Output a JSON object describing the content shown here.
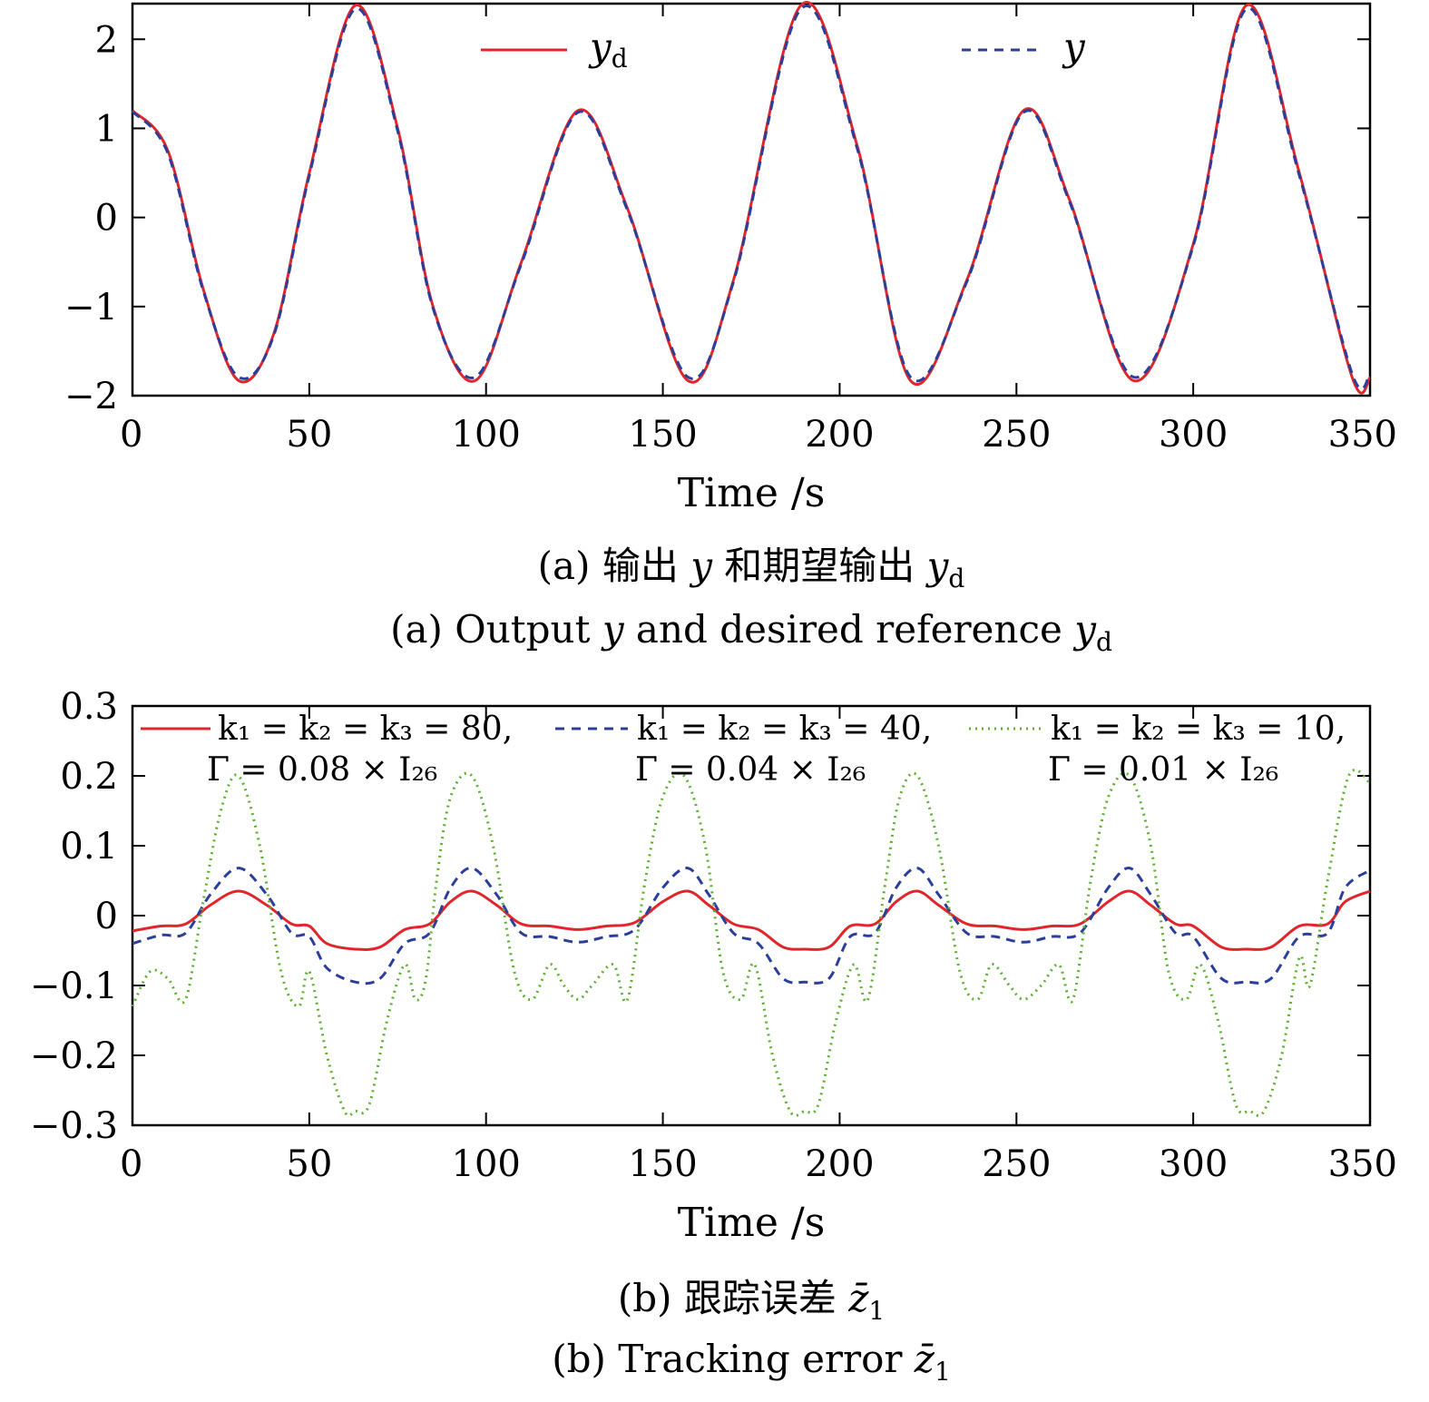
{
  "chart_data": [
    {
      "type": "line",
      "xlabel": "Time /s",
      "ylabel": "",
      "xlim": [
        0,
        350
      ],
      "ylim": [
        -2,
        2.4
      ],
      "x_ticks": [
        "0",
        "50",
        "100",
        "150",
        "200",
        "250",
        "300",
        "350"
      ],
      "y_ticks": [
        "−2",
        "−1",
        "0",
        "1",
        "2"
      ],
      "caption_cn": {
        "prefix": "(a) 输出",
        "sym1": "y",
        "mid": "和期望输出",
        "sym2": "y",
        "sub2": "d"
      },
      "caption_en": {
        "prefix": "(a) Output",
        "sym1": "y",
        "mid": "and desired reference",
        "sym2": "y",
        "sub2": "d"
      },
      "legend": [
        {
          "sym": "y",
          "sub": "d"
        },
        {
          "sym": "y",
          "sub": ""
        }
      ],
      "series": [
        {
          "color": "#e0262b",
          "dash": "solid",
          "x": [
            0,
            10,
            20,
            30,
            40,
            50,
            63,
            75,
            85,
            97,
            110,
            126,
            140,
            157,
            170,
            189,
            205,
            220,
            236,
            252,
            265,
            283,
            300,
            315,
            330,
            345,
            350
          ],
          "y": [
            1.2,
            0.75,
            -0.8,
            -1.83,
            -1.3,
            0.5,
            2.38,
            1.0,
            -1.0,
            -1.83,
            -0.5,
            1.2,
            0.1,
            -1.83,
            -0.7,
            2.38,
            0.8,
            -1.83,
            -0.7,
            1.2,
            0.2,
            -1.83,
            -0.3,
            2.38,
            0.5,
            -1.8,
            -1.8
          ]
        },
        {
          "color": "#2b3f9a",
          "dash": "dashed",
          "x": [
            0,
            10,
            20,
            30,
            40,
            50,
            63,
            75,
            85,
            97,
            110,
            126,
            140,
            157,
            170,
            189,
            205,
            220,
            236,
            252,
            265,
            283,
            300,
            315,
            330,
            345,
            350
          ],
          "y": [
            1.19,
            0.72,
            -0.82,
            -1.79,
            -1.32,
            0.47,
            2.34,
            0.97,
            -1.02,
            -1.79,
            -0.52,
            1.18,
            0.08,
            -1.79,
            -0.72,
            2.34,
            0.77,
            -1.79,
            -0.72,
            1.18,
            0.18,
            -1.79,
            -0.32,
            2.34,
            0.47,
            -1.76,
            -1.76
          ]
        }
      ]
    },
    {
      "type": "line",
      "xlabel": "Time /s",
      "ylabel": "",
      "xlim": [
        0,
        350
      ],
      "ylim": [
        -0.3,
        0.3
      ],
      "x_ticks": [
        "0",
        "50",
        "100",
        "150",
        "200",
        "250",
        "300",
        "350"
      ],
      "y_ticks": [
        "−0.3",
        "−0.2",
        "−0.1",
        "0",
        "0.1",
        "0.2",
        "0.3"
      ],
      "caption_cn": {
        "prefix": "(b) 跟踪误差",
        "sym1": "z̄",
        "sub1": "1"
      },
      "caption_en": {
        "prefix": "(b) Tracking error",
        "sym1": "z̄",
        "sub1": "1"
      },
      "legend": [
        {
          "line1": "k₁ = k₂ = k₃ = 80,",
          "line2": "Γ = 0.08 × I₂₆"
        },
        {
          "line1": "k₁ = k₂ = k₃ = 40,",
          "line2": "Γ = 0.04 × I₂₆"
        },
        {
          "line1": "k₁ = k₂ = k₃ = 10,",
          "line2": "Γ = 0.01 × I₂₆"
        }
      ],
      "series": [
        {
          "color": "#e0262b",
          "dash": "solid",
          "x": [
            0,
            8,
            15,
            22,
            30,
            38,
            45,
            50,
            55,
            63,
            70,
            77,
            84,
            90,
            96,
            103,
            110,
            118,
            126,
            134,
            142,
            150,
            157,
            163,
            170,
            177,
            184,
            190,
            197,
            203,
            210,
            216,
            222,
            228,
            236,
            244,
            252,
            260,
            268,
            276,
            282,
            288,
            295,
            300,
            308,
            315,
            322,
            330,
            338,
            343,
            350
          ],
          "y": [
            -0.022,
            -0.015,
            -0.012,
            0.015,
            0.035,
            0.015,
            -0.012,
            -0.015,
            -0.04,
            -0.048,
            -0.045,
            -0.02,
            -0.012,
            0.02,
            0.035,
            0.015,
            -0.012,
            -0.015,
            -0.02,
            -0.015,
            -0.01,
            0.02,
            0.035,
            0.015,
            -0.012,
            -0.02,
            -0.045,
            -0.048,
            -0.045,
            -0.015,
            -0.012,
            0.02,
            0.035,
            0.015,
            -0.012,
            -0.015,
            -0.02,
            -0.015,
            -0.012,
            0.02,
            0.035,
            0.015,
            -0.012,
            -0.015,
            -0.045,
            -0.048,
            -0.045,
            -0.015,
            -0.012,
            0.02,
            0.035
          ]
        },
        {
          "color": "#2b3f9a",
          "dash": "dashed",
          "x": [
            0,
            8,
            15,
            22,
            30,
            38,
            45,
            50,
            55,
            63,
            70,
            77,
            84,
            90,
            96,
            103,
            110,
            118,
            126,
            134,
            142,
            150,
            157,
            163,
            170,
            177,
            184,
            190,
            197,
            203,
            210,
            216,
            222,
            228,
            236,
            244,
            252,
            260,
            268,
            276,
            282,
            288,
            295,
            300,
            308,
            315,
            322,
            330,
            338,
            343,
            350
          ],
          "y": [
            -0.04,
            -0.028,
            -0.025,
            0.03,
            0.068,
            0.03,
            -0.025,
            -0.03,
            -0.075,
            -0.095,
            -0.09,
            -0.04,
            -0.025,
            0.04,
            0.068,
            0.03,
            -0.025,
            -0.03,
            -0.038,
            -0.03,
            -0.02,
            0.04,
            0.068,
            0.03,
            -0.025,
            -0.04,
            -0.09,
            -0.095,
            -0.09,
            -0.03,
            -0.025,
            0.04,
            0.068,
            0.03,
            -0.025,
            -0.03,
            -0.038,
            -0.03,
            -0.025,
            0.04,
            0.068,
            0.03,
            -0.025,
            -0.03,
            -0.09,
            -0.095,
            -0.09,
            -0.03,
            -0.025,
            0.04,
            0.065
          ]
        },
        {
          "color": "#5cb030",
          "dash": "dotted",
          "x": [
            0,
            5,
            10,
            15,
            20,
            25,
            30,
            36,
            42,
            47,
            50,
            55,
            60,
            63,
            67,
            72,
            77,
            80,
            83,
            86,
            90,
            96,
            102,
            108,
            113,
            118,
            122,
            126,
            130,
            136,
            140,
            145,
            150,
            156,
            162,
            167,
            172,
            176,
            181,
            186,
            190,
            194,
            199,
            204,
            208,
            213,
            217,
            222,
            228,
            234,
            239,
            243,
            248,
            252,
            257,
            262,
            266,
            271,
            276,
            282,
            288,
            293,
            298,
            302,
            307,
            312,
            316,
            320,
            325,
            330,
            333,
            338,
            344,
            350
          ],
          "y": [
            -0.13,
            -0.08,
            -0.09,
            -0.12,
            0.02,
            0.15,
            0.2,
            0.1,
            -0.08,
            -0.13,
            -0.08,
            -0.2,
            -0.28,
            -0.28,
            -0.27,
            -0.15,
            -0.07,
            -0.12,
            -0.09,
            0.05,
            0.17,
            0.2,
            0.1,
            -0.08,
            -0.12,
            -0.07,
            -0.1,
            -0.12,
            -0.1,
            -0.07,
            -0.12,
            0.05,
            0.17,
            0.2,
            0.1,
            -0.08,
            -0.12,
            -0.07,
            -0.2,
            -0.28,
            -0.28,
            -0.27,
            -0.15,
            -0.07,
            -0.12,
            0.05,
            0.17,
            0.2,
            0.1,
            -0.08,
            -0.12,
            -0.07,
            -0.1,
            -0.12,
            -0.1,
            -0.07,
            -0.12,
            0.05,
            0.17,
            0.2,
            0.1,
            -0.08,
            -0.12,
            -0.07,
            -0.15,
            -0.27,
            -0.28,
            -0.28,
            -0.2,
            -0.06,
            -0.1,
            0.05,
            0.2,
            0.19
          ]
        }
      ]
    }
  ]
}
